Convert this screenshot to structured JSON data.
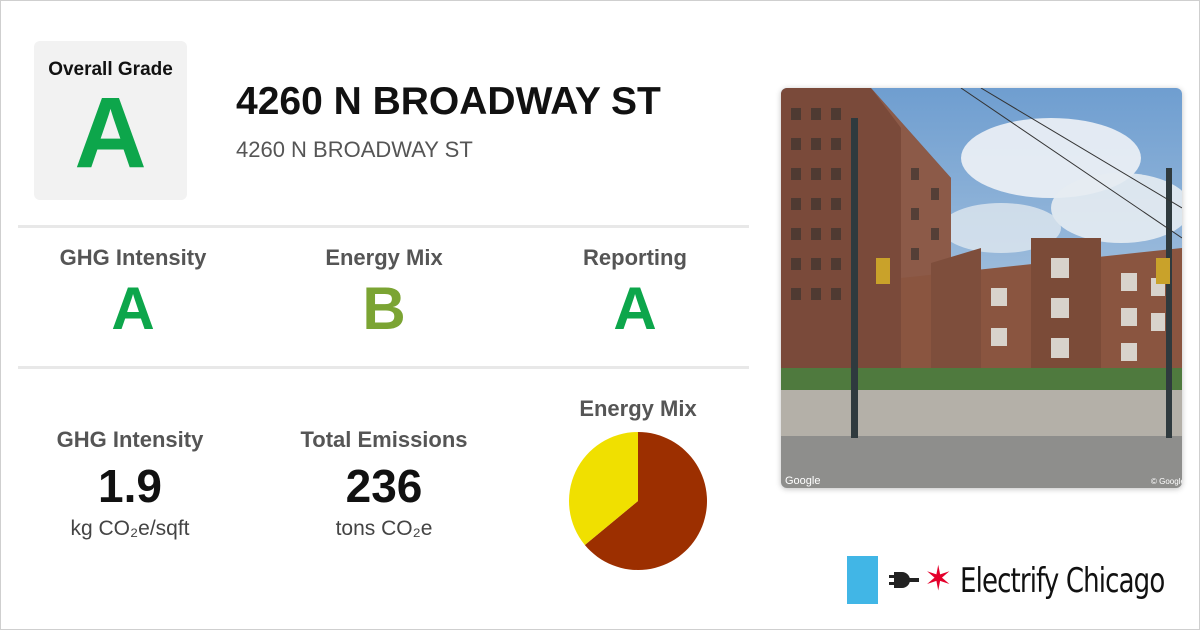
{
  "overall": {
    "label": "Overall Grade",
    "grade": "A",
    "grade_color": "#0da64b"
  },
  "building": {
    "title": "4260 N BROADWAY ST",
    "address": "4260 N BROADWAY ST"
  },
  "grades": [
    {
      "label": "GHG Intensity",
      "grade": "A",
      "color": "#0da64b"
    },
    {
      "label": "Energy Mix",
      "grade": "B",
      "color": "#7ba433"
    },
    {
      "label": "Reporting",
      "grade": "A",
      "color": "#0da64b"
    }
  ],
  "stats": [
    {
      "label": "GHG Intensity",
      "value": "1.9",
      "unit": "kg CO₂e/sqft"
    },
    {
      "label": "Total Emissions",
      "value": "236",
      "unit": "tons CO₂e"
    }
  ],
  "chart_data": {
    "type": "pie",
    "title": "Energy Mix",
    "slices": [
      {
        "value": 64,
        "color": "#9c2f00"
      },
      {
        "value": 36,
        "color": "#f0e000"
      }
    ]
  },
  "photo": {
    "watermark_left": "Google",
    "watermark_right": "© Google"
  },
  "brand": {
    "name": "Electrify Chicago",
    "star": "✶",
    "flag_color": "#41b6e6",
    "star_color": "#e4002b"
  }
}
